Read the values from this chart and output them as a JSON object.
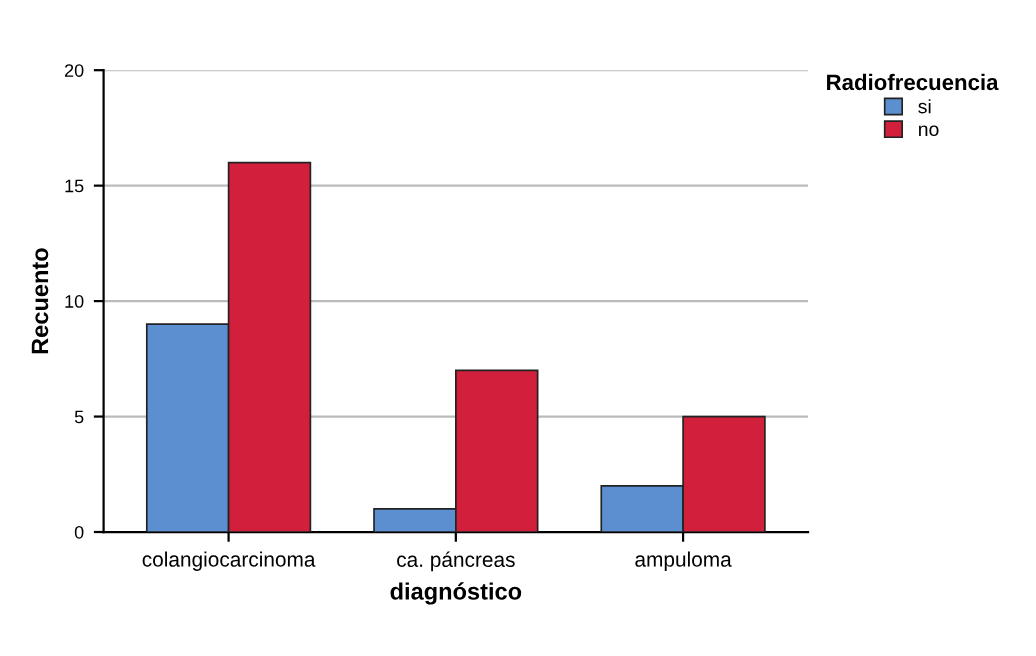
{
  "chart_data": {
    "type": "bar",
    "xlabel": "diagnóstico",
    "ylabel": "Recuento",
    "legend_title": "Radiofrecuencia",
    "categories": [
      "colangiocarcinoma",
      "ca. páncreas",
      "ampuloma"
    ],
    "series": [
      {
        "name": "si",
        "color": "#5b8fd0",
        "values": [
          9,
          1,
          2
        ]
      },
      {
        "name": "no",
        "color": "#d21f3c",
        "values": [
          16,
          7,
          5
        ]
      }
    ],
    "ylim": [
      0,
      20
    ],
    "yticks": [
      0,
      5,
      10,
      15,
      20
    ],
    "grid": "y",
    "legend": "top right"
  }
}
